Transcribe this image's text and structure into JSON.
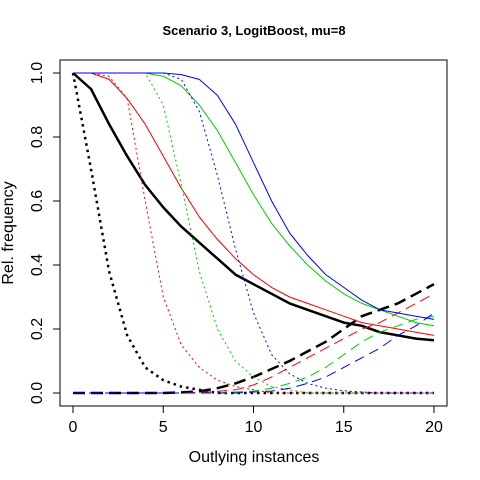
{
  "chart_data": {
    "type": "line",
    "title": "Scenario 3, LogitBoost, mu=8",
    "xlabel": "Outlying instances",
    "ylabel": "Rel. frequency",
    "xlim": [
      0,
      20
    ],
    "ylim": [
      0,
      1
    ],
    "xticks": [
      0,
      5,
      10,
      15,
      20
    ],
    "yticks": [
      0.0,
      0.2,
      0.4,
      0.6,
      0.8,
      1.0
    ],
    "xtick_labels": [
      "0",
      "5",
      "10",
      "15",
      "20"
    ],
    "ytick_labels": [
      "0.0",
      "0.2",
      "0.4",
      "0.6",
      "0.8",
      "1.0"
    ],
    "grid": false,
    "x": [
      0,
      1,
      2,
      3,
      4,
      5,
      6,
      7,
      8,
      9,
      10,
      11,
      12,
      13,
      14,
      15,
      16,
      17,
      18,
      19,
      20
    ],
    "series": [
      {
        "color": "#000000",
        "dash": "solid",
        "width": 2.5,
        "values": [
          1.0,
          0.95,
          0.84,
          0.74,
          0.65,
          0.58,
          0.52,
          0.47,
          0.42,
          0.37,
          0.34,
          0.31,
          0.28,
          0.26,
          0.24,
          0.22,
          0.21,
          0.19,
          0.18,
          0.17,
          0.165
        ]
      },
      {
        "color": "#000000",
        "dash": "dotted",
        "width": 2.5,
        "values": [
          1.0,
          0.7,
          0.38,
          0.18,
          0.08,
          0.04,
          0.02,
          0.01,
          0.0,
          0.0,
          0.0,
          0.0,
          0.0,
          0.0,
          0.0,
          0.0,
          0.0,
          0.0,
          0.0,
          0.0,
          0.0
        ]
      },
      {
        "color": "#000000",
        "dash": "dashed",
        "width": 2.5,
        "values": [
          0.0,
          0.0,
          0.0,
          0.0,
          0.0,
          0.0,
          0.002,
          0.005,
          0.015,
          0.03,
          0.05,
          0.075,
          0.1,
          0.13,
          0.16,
          0.2,
          0.24,
          0.26,
          0.28,
          0.31,
          0.34
        ]
      },
      {
        "color": "#ff0000",
        "dash": "solid",
        "width": 1,
        "values": [
          1.0,
          1.0,
          0.98,
          0.92,
          0.84,
          0.74,
          0.64,
          0.55,
          0.48,
          0.42,
          0.37,
          0.33,
          0.3,
          0.28,
          0.26,
          0.24,
          0.22,
          0.21,
          0.2,
          0.19,
          0.18
        ]
      },
      {
        "color": "#ff0000",
        "dash": "dotted",
        "width": 1,
        "values": [
          1.0,
          1.0,
          0.99,
          0.92,
          0.6,
          0.3,
          0.15,
          0.08,
          0.04,
          0.02,
          0.01,
          0.0,
          0.0,
          0.0,
          0.0,
          0.0,
          0.0,
          0.0,
          0.0,
          0.0,
          0.0
        ]
      },
      {
        "color": "#ff0000",
        "dash": "dashed",
        "width": 1,
        "values": [
          0.0,
          0.0,
          0.0,
          0.0,
          0.0,
          0.0,
          0.0,
          0.002,
          0.005,
          0.01,
          0.025,
          0.05,
          0.08,
          0.11,
          0.14,
          0.17,
          0.2,
          0.22,
          0.25,
          0.28,
          0.31
        ]
      },
      {
        "color": "#00cc00",
        "dash": "solid",
        "width": 1,
        "values": [
          1.0,
          1.0,
          1.0,
          1.0,
          1.0,
          0.99,
          0.96,
          0.9,
          0.82,
          0.72,
          0.62,
          0.53,
          0.46,
          0.4,
          0.35,
          0.31,
          0.28,
          0.26,
          0.24,
          0.22,
          0.21
        ]
      },
      {
        "color": "#00cc00",
        "dash": "dotted",
        "width": 1,
        "values": [
          1.0,
          1.0,
          1.0,
          1.0,
          1.0,
          0.9,
          0.65,
          0.38,
          0.2,
          0.1,
          0.05,
          0.02,
          0.01,
          0.0,
          0.0,
          0.0,
          0.0,
          0.0,
          0.0,
          0.0,
          0.0
        ]
      },
      {
        "color": "#00cc00",
        "dash": "dashed",
        "width": 1,
        "values": [
          0.0,
          0.0,
          0.0,
          0.0,
          0.0,
          0.0,
          0.0,
          0.0,
          0.0,
          0.003,
          0.006,
          0.015,
          0.03,
          0.05,
          0.08,
          0.12,
          0.16,
          0.19,
          0.21,
          0.23,
          0.24
        ]
      },
      {
        "color": "#0000ff",
        "dash": "solid",
        "width": 1,
        "values": [
          1.0,
          1.0,
          1.0,
          1.0,
          1.0,
          1.0,
          0.995,
          0.98,
          0.93,
          0.84,
          0.72,
          0.6,
          0.5,
          0.43,
          0.37,
          0.33,
          0.29,
          0.26,
          0.25,
          0.24,
          0.23
        ]
      },
      {
        "color": "#0000ff",
        "dash": "dotted",
        "width": 1,
        "values": [
          1.0,
          1.0,
          1.0,
          1.0,
          1.0,
          1.0,
          0.98,
          0.88,
          0.68,
          0.45,
          0.25,
          0.12,
          0.06,
          0.03,
          0.015,
          0.007,
          0.003,
          0.0,
          0.0,
          0.0,
          0.0
        ]
      },
      {
        "color": "#0000ff",
        "dash": "dashed",
        "width": 1,
        "values": [
          0.0,
          0.0,
          0.0,
          0.0,
          0.0,
          0.0,
          0.0,
          0.0,
          0.0,
          0.0,
          0.003,
          0.006,
          0.015,
          0.03,
          0.05,
          0.08,
          0.11,
          0.14,
          0.18,
          0.21,
          0.25
        ]
      }
    ]
  }
}
